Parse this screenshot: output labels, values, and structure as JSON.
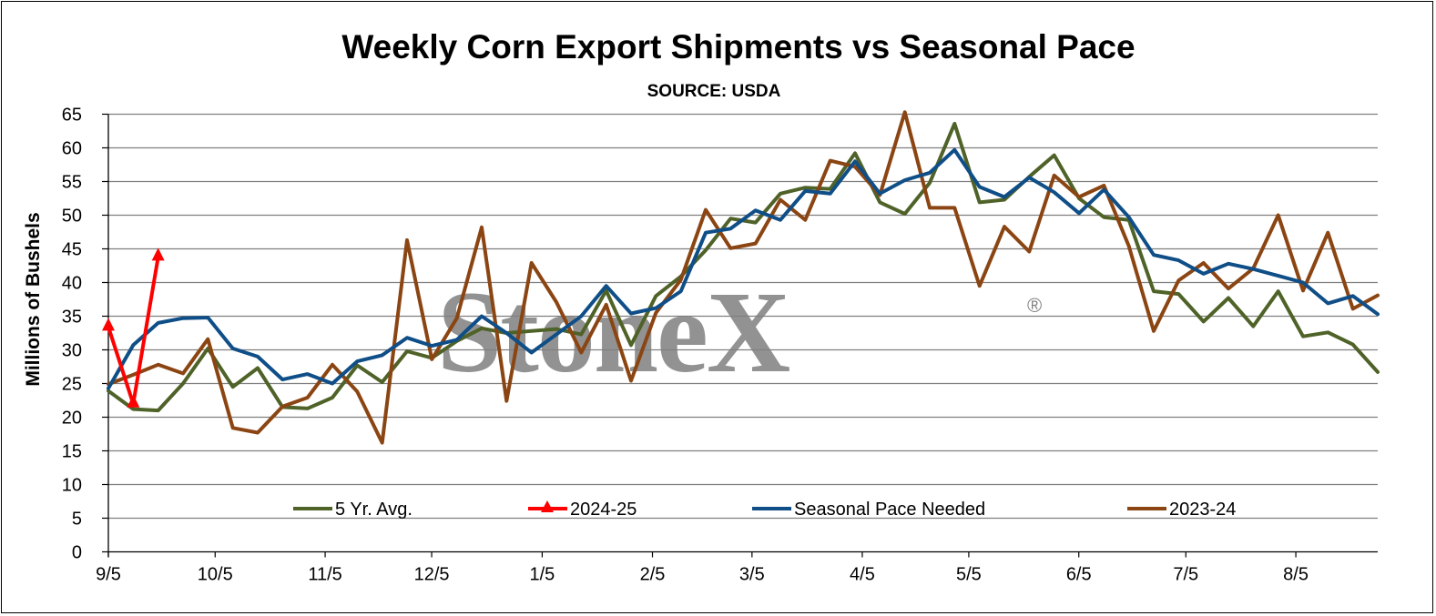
{
  "chart_data": {
    "type": "line",
    "title": "Weekly Corn Export Shipments vs Seasonal Pace",
    "subtitle": "SOURCE: USDA",
    "ylabel": "Millions of Bushels",
    "xlabel": "",
    "ylim": [
      0,
      65
    ],
    "yticks": [
      0,
      5,
      10,
      15,
      20,
      25,
      30,
      35,
      40,
      45,
      50,
      55,
      60,
      65
    ],
    "xtick_labels": [
      "9/5",
      "10/5",
      "11/5",
      "12/5",
      "1/5",
      "2/5",
      "3/5",
      "4/5",
      "5/5",
      "6/5",
      "7/5",
      "8/5"
    ],
    "xtick_weeks": [
      0,
      4.29,
      8.71,
      12.99,
      17.43,
      21.86,
      25.86,
      30.29,
      34.57,
      38.99,
      43.29,
      47.71
    ],
    "grid": true,
    "legend_position": "bottom-inside",
    "watermark": "StoneX",
    "series": [
      {
        "name": "5 Yr. Avg.",
        "color": "#4f6228",
        "marker": "none",
        "values": [
          23.9,
          21.2,
          21.0,
          25.0,
          30.2,
          24.5,
          27.3,
          21.5,
          21.3,
          22.9,
          27.7,
          25.2,
          29.8,
          28.8,
          31.3,
          33.2,
          32.5,
          32.8,
          33.1,
          32.3,
          38.8,
          30.7,
          38.0,
          40.9,
          44.8,
          49.5,
          48.9,
          53.2,
          54.1,
          53.9,
          59.2,
          51.9,
          50.2,
          54.8,
          63.6,
          51.9,
          52.3,
          55.7,
          58.9,
          52.5,
          49.7,
          49.3,
          38.7,
          38.3,
          34.2,
          37.7,
          33.5,
          38.7,
          32.0,
          32.6,
          30.8,
          26.7
        ]
      },
      {
        "name": "2024-25",
        "color": "#ff0000",
        "marker": "triangle",
        "values": [
          33.4,
          22.0,
          43.8
        ]
      },
      {
        "name": "Seasonal Pace Needed",
        "color": "#0f4e87",
        "marker": "none",
        "values": [
          24.3,
          30.7,
          34.0,
          34.7,
          34.8,
          30.2,
          29.0,
          25.6,
          26.4,
          25.0,
          28.3,
          29.2,
          31.8,
          30.6,
          31.5,
          35.0,
          32.5,
          29.6,
          32.3,
          35.0,
          39.5,
          35.4,
          36.2,
          38.7,
          47.4,
          48.0,
          50.7,
          49.3,
          53.6,
          53.2,
          58.0,
          53.2,
          55.2,
          56.3,
          59.7,
          54.2,
          52.7,
          55.6,
          53.4,
          50.3,
          53.8,
          49.7,
          44.1,
          43.3,
          41.3,
          42.8,
          42.0,
          41.0,
          40.0,
          36.9,
          38.0,
          35.3
        ]
      },
      {
        "name": "2023-24",
        "color": "#8b4513",
        "marker": "none",
        "values": [
          24.9,
          26.3,
          27.8,
          26.5,
          31.6,
          18.4,
          17.7,
          21.6,
          22.9,
          27.8,
          23.8,
          16.2,
          46.3,
          28.6,
          34.7,
          48.2,
          22.4,
          42.9,
          37.1,
          29.6,
          36.7,
          25.4,
          35.5,
          40.4,
          50.8,
          45.1,
          45.8,
          52.3,
          49.3,
          58.1,
          57.2,
          53.0,
          65.3,
          51.1,
          51.1,
          39.5,
          48.3,
          44.6,
          55.9,
          52.7,
          54.4,
          45.4,
          32.8,
          40.3,
          42.9,
          39.1,
          42.1,
          50.0,
          38.8,
          47.4,
          36.1,
          38.1
        ]
      }
    ]
  }
}
